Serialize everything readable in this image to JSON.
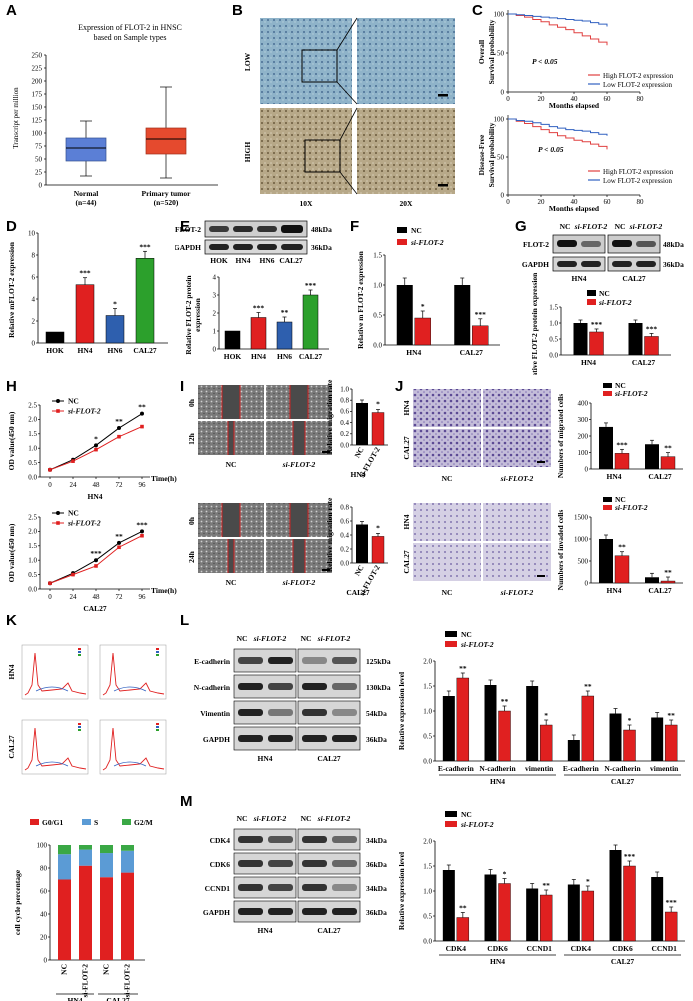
{
  "labels": {
    "A": "A",
    "B": "B",
    "C": "C",
    "D": "D",
    "E": "E",
    "F": "F",
    "G": "G",
    "H": "H",
    "I": "I",
    "J": "J",
    "K": "K",
    "L": "L",
    "M": "M"
  },
  "colors": {
    "nc": "#000000",
    "si": "#e02020",
    "hok": "#000000",
    "hn4": "#e02020",
    "hn6": "#2e5fae",
    "cal27": "#2ca02c",
    "high": "#e04040",
    "low": "#3060c0",
    "g0g1": "#e02020",
    "s": "#5b9bd5",
    "g2m": "#3aa845"
  },
  "panelA": {
    "title1": "Expression  of  FLOT-2 in HNSC",
    "title2": "based on Sample types",
    "ylabel": "Transcript per million",
    "categories": [
      {
        "name": "Normal",
        "n": "(n=44)"
      },
      {
        "name": "Primary tumor",
        "n": "(n=520)"
      }
    ],
    "yticks": [
      "0",
      "25",
      "50",
      "75",
      "100",
      "125",
      "150",
      "175",
      "200",
      "225",
      "250"
    ]
  },
  "panelB": {
    "rows": [
      "LOW",
      "HIGH"
    ],
    "cols": [
      "10X",
      "20X"
    ]
  },
  "panelC": {
    "ylab1a": "Overall",
    "ylab1b": "Survival  probability",
    "ylab2a": "Disease-Free",
    "ylab2b": "Survival  probability",
    "pval": "P < 0.05",
    "xlabel": "Months elapsed",
    "legend": [
      "High FLOT-2 expression",
      "Low FLOT-2 expression"
    ],
    "xticks": [
      "0",
      "20",
      "40",
      "60",
      "80"
    ],
    "yticks": [
      "0",
      "50",
      "100"
    ]
  },
  "panelD": {
    "ylabel": "Relative mFLOT-2 expression",
    "categories": [
      "HOK",
      "HN4",
      "HN6",
      "CAL27"
    ],
    "values": [
      1,
      5.3,
      2.5,
      7.7
    ],
    "stars": [
      "",
      "***",
      "*",
      "***"
    ],
    "yticks": [
      "0",
      "2",
      "4",
      "6",
      "8",
      "10"
    ]
  },
  "panelE": {
    "blots": [
      "FLOT-2",
      "GAPDH"
    ],
    "kda": [
      "48kDa",
      "36kDa"
    ],
    "ylabel1": "Relative FLOT-2 protein",
    "ylabel2": "expression",
    "categories": [
      "HOK",
      "HN4",
      "HN6",
      "CAL27"
    ],
    "values": [
      1,
      1.75,
      1.5,
      3.0
    ],
    "stars": [
      "",
      "***",
      "**",
      "***"
    ],
    "yticks": [
      "0",
      "1",
      "2",
      "3",
      "4"
    ]
  },
  "panelF": {
    "ylabel": "Relative m FLOT-2 expression",
    "legend": [
      "NC",
      "si-FLOT-2"
    ],
    "categories": [
      "HN4",
      "CAL27"
    ],
    "nc": [
      1,
      1
    ],
    "si": [
      0.45,
      0.32
    ],
    "stars": [
      "*",
      "***"
    ],
    "yticks": [
      "0.0",
      "0.5",
      "1.0",
      "1.5"
    ]
  },
  "panelG": {
    "header": [
      "NC",
      "si-FLOT-2",
      "NC",
      "si-FLOT-2"
    ],
    "blots": [
      "FLOT-2",
      "GAPDH"
    ],
    "kda": [
      "48kDa",
      "36kDa"
    ],
    "cells": [
      "HN4",
      "CAL27"
    ],
    "ylabel": "Relative FLOT-2 protein expression",
    "legend": [
      "NC",
      "si-FLOT-2"
    ],
    "nc": [
      1,
      1
    ],
    "si": [
      0.72,
      0.58
    ],
    "stars": [
      "***",
      "***"
    ],
    "yticks": [
      "0.0",
      "0.5",
      "1.0",
      "1.5"
    ]
  },
  "panelH": {
    "ylabel": "OD value(450 nm)",
    "xlabel": "Time(h)",
    "legend": [
      "NC",
      "si-FLOT-2"
    ],
    "xticks": [
      "0",
      "24",
      "48",
      "72",
      "96"
    ],
    "top": {
      "cell": "HN4",
      "nc": [
        0.25,
        0.6,
        1.1,
        1.7,
        2.2
      ],
      "si": [
        0.25,
        0.55,
        0.95,
        1.4,
        1.75
      ],
      "stars": [
        "",
        "",
        "*",
        "**",
        "**"
      ],
      "yticks": [
        "0.0",
        "0.5",
        "1.0",
        "1.5",
        "2.0",
        "2.5"
      ]
    },
    "bottom": {
      "cell": "CAL27",
      "nc": [
        0.2,
        0.55,
        1.0,
        1.6,
        2.0
      ],
      "si": [
        0.2,
        0.5,
        0.8,
        1.45,
        1.85
      ],
      "stars": [
        "",
        "",
        "***",
        "**",
        "***"
      ],
      "yticks": [
        "0.0",
        "0.5",
        "1.0",
        "1.5",
        "2.0",
        "2.5"
      ]
    }
  },
  "panelI": {
    "top": {
      "rows": [
        "0h",
        "12h"
      ],
      "cols": [
        "NC",
        "si-FLOT-2"
      ],
      "cell": "HN4",
      "ylabel": "Relative migration rate",
      "bars": [
        "NC",
        "si-FLOT-2"
      ],
      "values": [
        0.75,
        0.58
      ],
      "star": "*",
      "yticks": [
        "0.0",
        "0.2",
        "0.4",
        "0.6",
        "0.8",
        "1.0"
      ]
    },
    "bottom": {
      "rows": [
        "0h",
        "24h"
      ],
      "cols": [
        "NC",
        "si-FLOT-2"
      ],
      "cell": "CAL27",
      "ylabel": "Relative migration rate",
      "bars": [
        "NC",
        "si-FLOT-2"
      ],
      "values": [
        0.55,
        0.38
      ],
      "star": "*",
      "yticks": [
        "0.0",
        "0.2",
        "0.4",
        "0.6",
        "0.8"
      ]
    }
  },
  "panelJ": {
    "rows": [
      "HN4",
      "CAL27"
    ],
    "cols": [
      "NC",
      "si-FLOT-2"
    ],
    "legend": [
      "NC",
      "si-FLOT-2"
    ],
    "top": {
      "ylabel": "Numbers of migrated cells",
      "categories": [
        "HN4",
        "CAL27"
      ],
      "nc": [
        255,
        150
      ],
      "si": [
        95,
        75
      ],
      "stars": [
        "***",
        "**"
      ],
      "yticks": [
        "0",
        "100",
        "200",
        "300",
        "400"
      ]
    },
    "bottom": {
      "ylabel": "Numbers of invaded cells",
      "categories": [
        "HN4",
        "CAL27"
      ],
      "nc": [
        1000,
        130
      ],
      "si": [
        620,
        45
      ],
      "stars": [
        "**",
        "**"
      ],
      "yticks": [
        "0",
        "500",
        "1000",
        "1500"
      ]
    }
  },
  "panelK": {
    "rows": [
      "HN4",
      "CAL27"
    ],
    "ylabel": "cell cycle percentage",
    "legend": [
      "G0/G1",
      "S",
      "G2/M"
    ],
    "bars": [
      "NC",
      "si-FLOT-2",
      "NC",
      "si-FLOT-2"
    ],
    "cells": [
      "HN4",
      "CAL27"
    ],
    "g0g1": [
      70,
      82,
      72,
      76
    ],
    "s": [
      22,
      14,
      21,
      19
    ],
    "g2m": [
      8,
      4,
      7,
      5
    ],
    "yticks": [
      "0",
      "20",
      "40",
      "60",
      "80",
      "100"
    ]
  },
  "panelL": {
    "header": [
      "NC",
      "si-FLOT-2",
      "NC",
      "si-FLOT-2"
    ],
    "blots": [
      "E-cadherin",
      "N-cadherin",
      "Vimentin",
      "GAPDH"
    ],
    "kda": [
      "125kDa",
      "130kDa",
      "54kDa",
      "36kDa"
    ],
    "cells": [
      "HN4",
      "CAL27"
    ],
    "ylabel": "Relative expression level",
    "legend": [
      "NC",
      "si-FLOT-2"
    ],
    "categories": [
      "E-cadherin",
      "N-cadherin",
      "vimentin",
      "E-cadherin",
      "N-cadherin",
      "vimentin"
    ],
    "nc": [
      1.3,
      1.52,
      1.5,
      0.42,
      0.95,
      0.87
    ],
    "si": [
      1.66,
      1.0,
      0.72,
      1.3,
      0.62,
      0.72
    ],
    "stars": [
      "**",
      "**",
      "*",
      "**",
      "*",
      "**"
    ],
    "yticks": [
      "0.0",
      "0.5",
      "1.0",
      "1.5",
      "2.0"
    ]
  },
  "panelM": {
    "header": [
      "NC",
      "si-FLOT-2",
      "NC",
      "si-FLOT-2"
    ],
    "blots": [
      "CDK4",
      "CDK6",
      "CCND1",
      "GAPDH"
    ],
    "kda": [
      "34kDa",
      "36kDa",
      "34kDa",
      "36kDa"
    ],
    "cells": [
      "HN4",
      "CAL27"
    ],
    "ylabel": "Relative expression level",
    "legend": [
      "NC",
      "si-FLOT-2"
    ],
    "categories": [
      "CDK4",
      "CDK6",
      "CCND1",
      "CDK4",
      "CDK6",
      "CCND1"
    ],
    "nc": [
      1.42,
      1.33,
      1.05,
      1.13,
      1.82,
      1.28
    ],
    "si": [
      0.47,
      1.15,
      0.92,
      1.0,
      1.5,
      0.58
    ],
    "stars": [
      "**",
      "*",
      "**",
      "*",
      "***",
      "***"
    ],
    "yticks": [
      "0.0",
      "0.5",
      "1.0",
      "1.5",
      "2.0"
    ]
  }
}
